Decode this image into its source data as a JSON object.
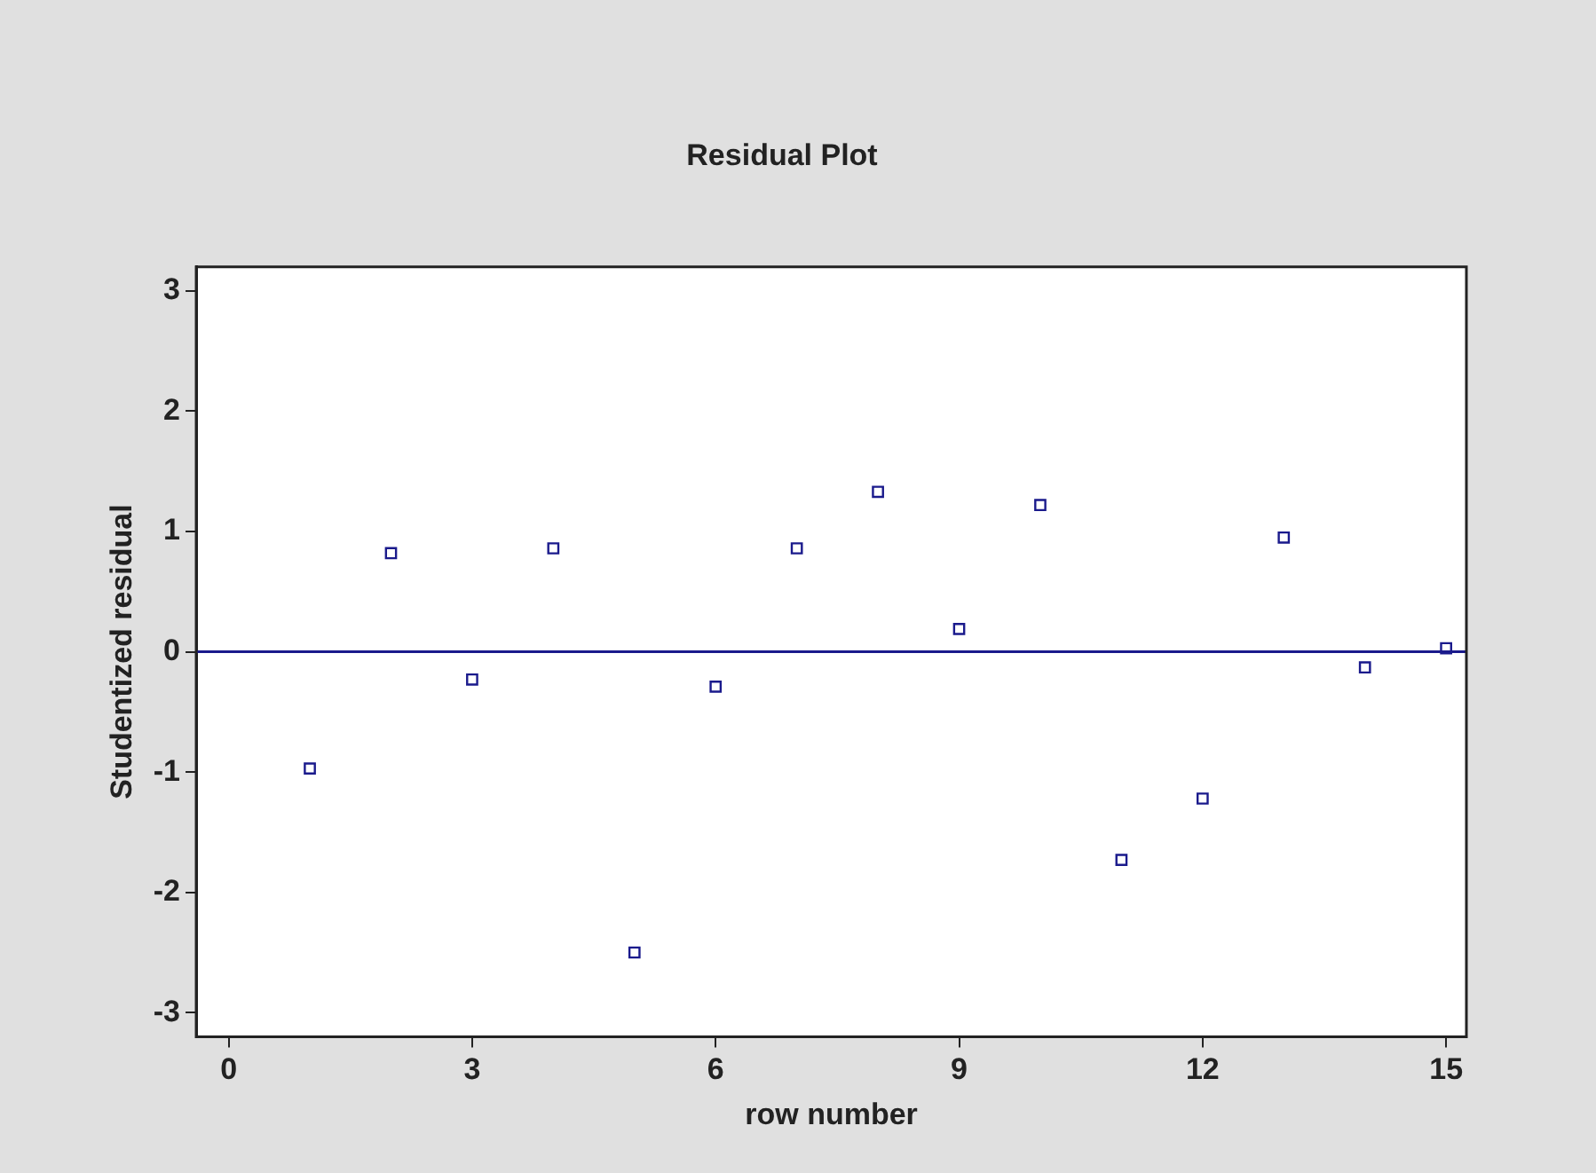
{
  "chart_data": {
    "type": "scatter",
    "title": "Residual Plot",
    "xlabel": "row number",
    "ylabel": "Studentized residual",
    "x": [
      1,
      2,
      3,
      4,
      5,
      6,
      7,
      8,
      9,
      10,
      11,
      12,
      13,
      14,
      15
    ],
    "series": [
      {
        "color": "#1a1a8c",
        "values": [
          -0.97,
          0.82,
          -0.23,
          0.86,
          -2.5,
          -0.29,
          0.86,
          1.33,
          0.19,
          1.22,
          -1.73,
          -1.22,
          0.95,
          -0.13,
          0.03
        ]
      }
    ],
    "xlim": [
      -0.4,
      15.25
    ],
    "xticks": [
      0,
      3,
      6,
      9,
      12,
      15
    ],
    "ylim": [
      -3.2,
      3.2
    ],
    "yticks": [
      -3,
      -2,
      -1,
      0,
      1,
      2,
      3
    ],
    "ref_lines": [
      {
        "axis": "y",
        "value": 0,
        "color": "#1a1a8c"
      }
    ],
    "marker": "square",
    "grid": false,
    "legend": false
  }
}
